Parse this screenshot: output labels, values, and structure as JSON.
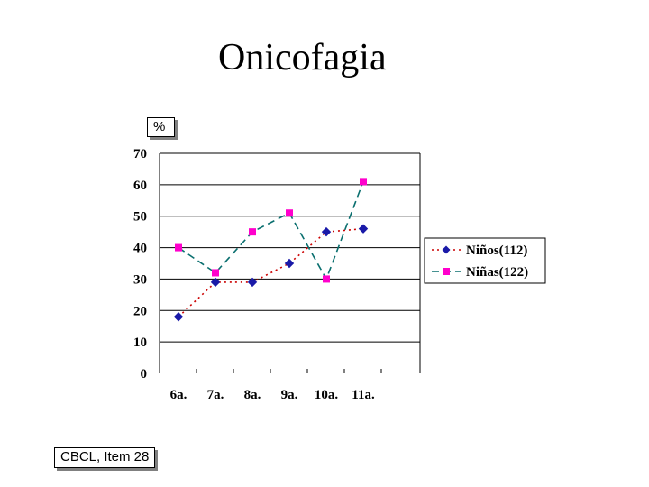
{
  "page": {
    "title": "Onicofagia",
    "unit_label": "%",
    "source_label": "CBCL, Item 28"
  },
  "chart_data": {
    "type": "line",
    "title": "Onicofagia",
    "xlabel": "",
    "ylabel": "%",
    "categories": [
      "6a.",
      "7a.",
      "8a.",
      "9a.",
      "10a.",
      "11a."
    ],
    "ylim": [
      0,
      70
    ],
    "yticks": [
      "0",
      "10",
      "20",
      "30",
      "40",
      "50",
      "60",
      "70"
    ],
    "grid": true,
    "legend_position": "right",
    "series": [
      {
        "name": "Niños(112)",
        "values": [
          18,
          29,
          29,
          35,
          45,
          46
        ],
        "color": "#cc0000",
        "marker_color": "#1a1aa8",
        "marker": "diamond",
        "dash": "dotted"
      },
      {
        "name": "Niñas(122)",
        "values": [
          40,
          32,
          45,
          51,
          30,
          61
        ],
        "color": "#0a6f6f",
        "marker_color": "#ff00cc",
        "marker": "square",
        "dash": "dashed"
      }
    ]
  }
}
